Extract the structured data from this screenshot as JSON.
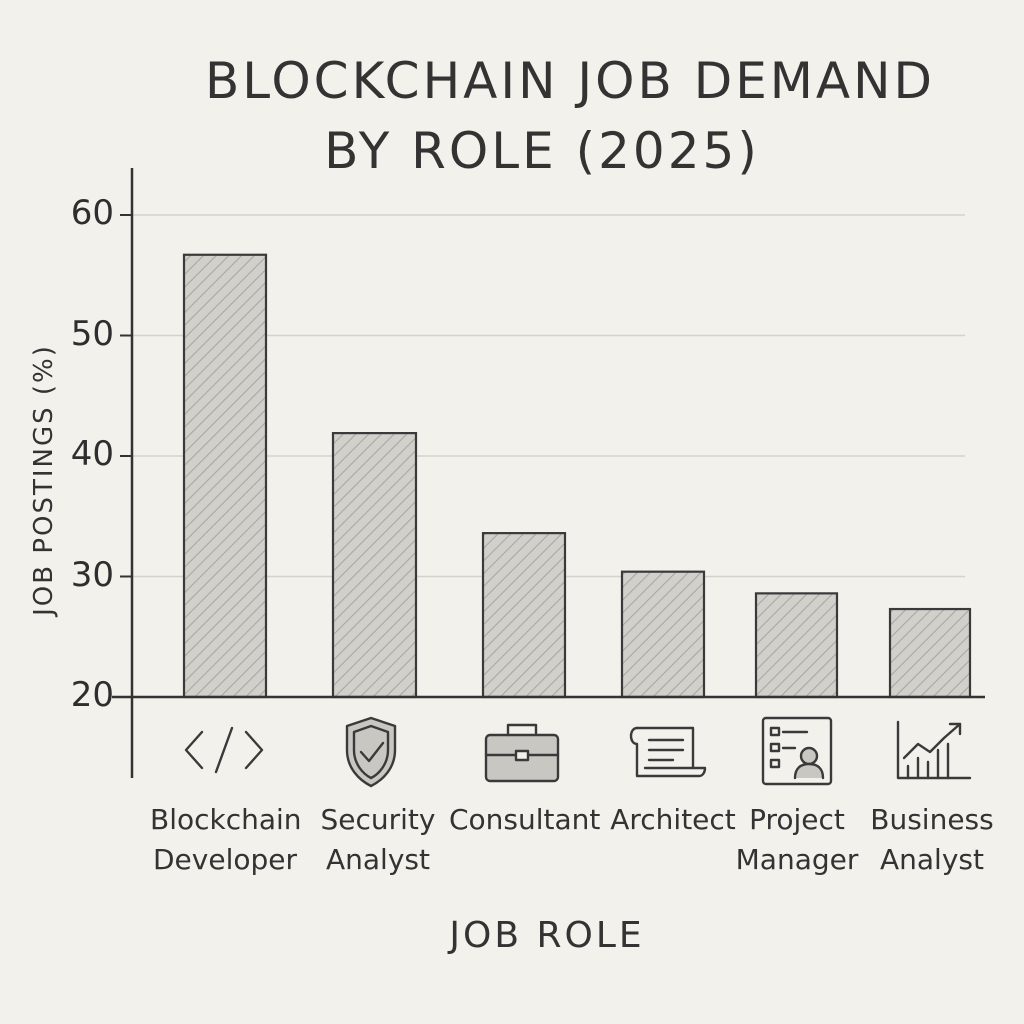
{
  "chart_data": {
    "type": "bar",
    "title_lines": [
      "BLOCKCHAIN JOB DEMAND",
      "BY ROLE (2025)"
    ],
    "xlabel": "JOB ROLE",
    "ylabel": "JOB POSTINGS (%)",
    "ylim": [
      20,
      60
    ],
    "yticks": [
      "20",
      "30",
      "40",
      "50",
      "60"
    ],
    "grid": true,
    "categories": [
      {
        "lines": [
          "Blockchain",
          "Developer"
        ],
        "icon": "code-icon"
      },
      {
        "lines": [
          "Security",
          "Analyst"
        ],
        "icon": "shield-check-icon"
      },
      {
        "lines": [
          "Consultant"
        ],
        "icon": "briefcase-icon"
      },
      {
        "lines": [
          "Architect"
        ],
        "icon": "blueprint-scroll-icon"
      },
      {
        "lines": [
          "Project",
          "Manager"
        ],
        "icon": "project-board-icon"
      },
      {
        "lines": [
          "Business",
          "Analyst"
        ],
        "icon": "growth-chart-icon"
      }
    ],
    "values": [
      56.7,
      41.9,
      33.6,
      30.4,
      28.6,
      27.3
    ],
    "colors": {
      "bar_fill": "#d2d0cb",
      "bar_stroke": "#3a3a3a",
      "hatch": "#a9a7a2",
      "grid": "#d4d2cd",
      "axis": "#333333"
    }
  }
}
